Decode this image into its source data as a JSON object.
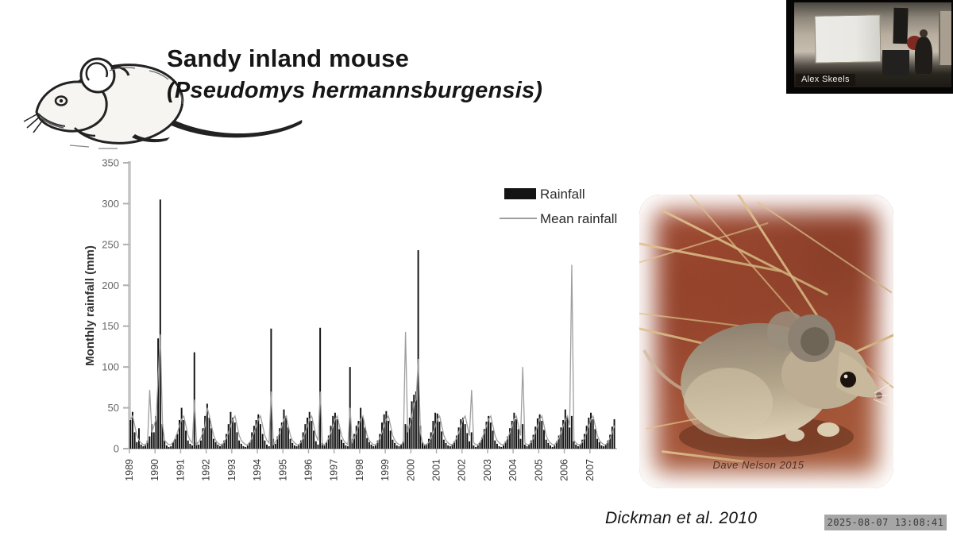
{
  "slide": {
    "title_line1": "Sandy inland mouse",
    "title_line2": "(Pseudomys hermannsburgensis)",
    "citation": "Dickman et al. 2010"
  },
  "photo": {
    "credit": "Dave Nelson 2015"
  },
  "webcam": {
    "name_label": "Alex Skeels"
  },
  "timestamp": {
    "text": "2025-08-07 13:08:41"
  },
  "chart_data": {
    "type": "bar",
    "title": "",
    "xlabel": "",
    "ylabel": "Monthly rainfall (mm)",
    "ylim": [
      0,
      350
    ],
    "yticks": [
      0,
      50,
      100,
      150,
      200,
      250,
      300,
      350
    ],
    "grid": false,
    "legend_position": "upper right",
    "years": [
      1989,
      1990,
      1991,
      1992,
      1993,
      1994,
      1995,
      1996,
      1997,
      1998,
      1999,
      2000,
      2001,
      2002,
      2003,
      2004,
      2005,
      2006,
      2007
    ],
    "series": [
      {
        "name": "Rainfall",
        "type": "bar",
        "color": "#141414",
        "values_by_year": [
          [
            35,
            45,
            20,
            8,
            25,
            5,
            3,
            4,
            10,
            15,
            30,
            20
          ],
          [
            40,
            135,
            305,
            30,
            10,
            4,
            2,
            3,
            8,
            12,
            18,
            35
          ],
          [
            50,
            35,
            22,
            10,
            6,
            4,
            118,
            8,
            5,
            10,
            25,
            40
          ],
          [
            55,
            38,
            25,
            12,
            8,
            5,
            3,
            6,
            10,
            18,
            30,
            45
          ],
          [
            38,
            32,
            20,
            10,
            6,
            3,
            2,
            4,
            8,
            20,
            28,
            35
          ],
          [
            42,
            30,
            18,
            10,
            5,
            3,
            147,
            12,
            6,
            15,
            25,
            32
          ],
          [
            48,
            40,
            26,
            12,
            7,
            4,
            3,
            5,
            10,
            20,
            30,
            38
          ],
          [
            45,
            34,
            22,
            9,
            5,
            148,
            7,
            4,
            8,
            16,
            28,
            40
          ],
          [
            44,
            36,
            24,
            11,
            7,
            4,
            3,
            100,
            12,
            18,
            28,
            34
          ],
          [
            50,
            38,
            26,
            13,
            8,
            5,
            3,
            4,
            10,
            18,
            32,
            42
          ],
          [
            46,
            34,
            22,
            11,
            7,
            4,
            3,
            5,
            9,
            30,
            28,
            38
          ],
          [
            58,
            66,
            70,
            243,
            28,
            8,
            4,
            6,
            12,
            20,
            34,
            44
          ],
          [
            43,
            33,
            21,
            11,
            7,
            4,
            3,
            5,
            9,
            16,
            26,
            36
          ],
          [
            38,
            30,
            19,
            9,
            20,
            4,
            2,
            4,
            8,
            14,
            24,
            33
          ],
          [
            40,
            32,
            22,
            10,
            6,
            3,
            2,
            4,
            9,
            15,
            25,
            34
          ],
          [
            44,
            36,
            24,
            12,
            30,
            5,
            3,
            5,
            10,
            17,
            27,
            37
          ],
          [
            42,
            34,
            23,
            11,
            7,
            4,
            2,
            4,
            9,
            16,
            26,
            35
          ],
          [
            48,
            38,
            26,
            40,
            9,
            5,
            3,
            5,
            11,
            18,
            28,
            38
          ],
          [
            44,
            36,
            24,
            12,
            8,
            4,
            3,
            5,
            10,
            17,
            27,
            36
          ]
        ]
      },
      {
        "name": "Mean rainfall",
        "type": "line",
        "color": "#9e9e9e",
        "values_by_year": [
          [
            36,
            40,
            28,
            16,
            10,
            7,
            5,
            5,
            8,
            72,
            20,
            28
          ],
          [
            36,
            90,
            140,
            30,
            10,
            7,
            5,
            5,
            8,
            13,
            20,
            28
          ],
          [
            36,
            40,
            28,
            16,
            10,
            7,
            60,
            5,
            8,
            13,
            20,
            28
          ],
          [
            50,
            40,
            28,
            16,
            10,
            7,
            5,
            5,
            8,
            13,
            20,
            28
          ],
          [
            36,
            40,
            28,
            16,
            10,
            7,
            5,
            5,
            8,
            13,
            20,
            28
          ],
          [
            36,
            40,
            28,
            16,
            10,
            7,
            70,
            5,
            8,
            13,
            20,
            28
          ],
          [
            36,
            40,
            28,
            16,
            10,
            7,
            5,
            5,
            8,
            13,
            20,
            28
          ],
          [
            36,
            40,
            28,
            16,
            10,
            70,
            5,
            5,
            8,
            13,
            20,
            28
          ],
          [
            36,
            40,
            28,
            16,
            10,
            7,
            5,
            50,
            8,
            13,
            20,
            28
          ],
          [
            36,
            40,
            28,
            16,
            10,
            7,
            5,
            5,
            8,
            13,
            20,
            28
          ],
          [
            36,
            40,
            28,
            16,
            10,
            7,
            5,
            5,
            8,
            143,
            20,
            28
          ],
          [
            40,
            55,
            60,
            110,
            20,
            7,
            5,
            5,
            8,
            13,
            20,
            28
          ],
          [
            36,
            40,
            28,
            16,
            10,
            7,
            5,
            5,
            8,
            13,
            20,
            28
          ],
          [
            36,
            40,
            28,
            16,
            72,
            7,
            5,
            5,
            8,
            13,
            20,
            28
          ],
          [
            36,
            40,
            28,
            16,
            10,
            7,
            5,
            5,
            8,
            13,
            20,
            28
          ],
          [
            36,
            40,
            28,
            16,
            100,
            7,
            5,
            5,
            8,
            13,
            20,
            28
          ],
          [
            36,
            40,
            28,
            16,
            10,
            7,
            5,
            5,
            8,
            13,
            20,
            28
          ],
          [
            36,
            40,
            28,
            225,
            10,
            7,
            5,
            5,
            8,
            13,
            20,
            28
          ],
          [
            36,
            40,
            28,
            16,
            10,
            7,
            5,
            5,
            8,
            13,
            20,
            28
          ]
        ]
      }
    ]
  }
}
